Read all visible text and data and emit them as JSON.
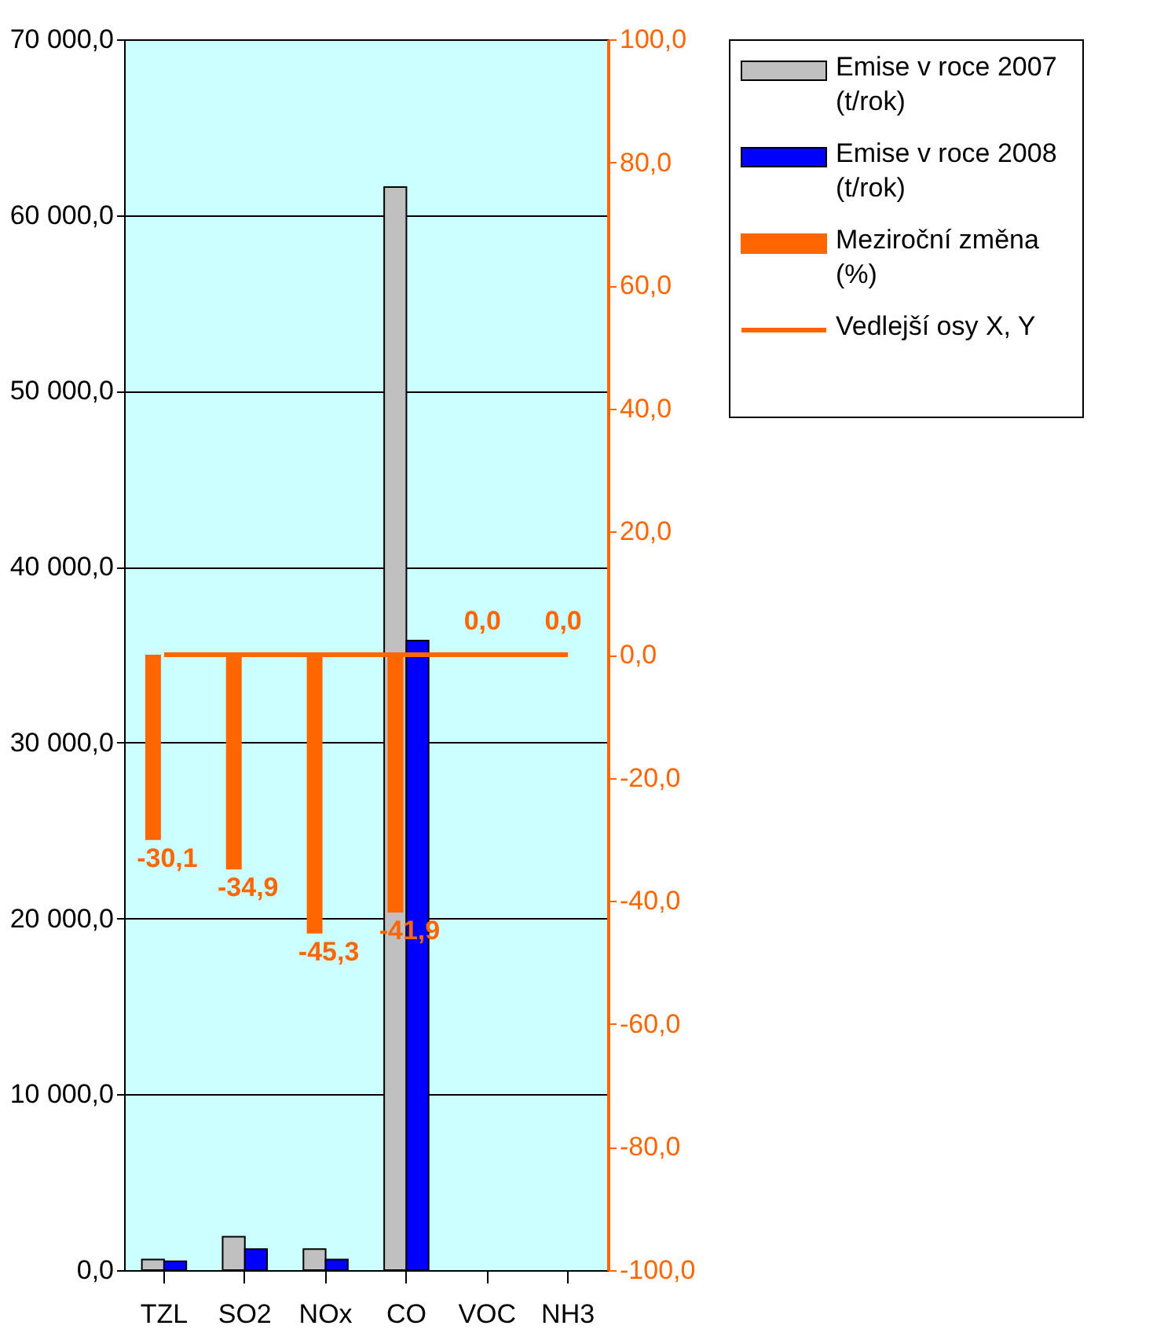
{
  "chart_data": {
    "type": "bar",
    "categories": [
      "TZL",
      "SO2",
      "NOx",
      "CO",
      "VOC",
      "NH3"
    ],
    "series": [
      {
        "name": "Emise v roce 2007\n(t/rok)",
        "color": "#c0c0c0",
        "values": [
          600,
          1900,
          1200,
          61600,
          null,
          null
        ]
      },
      {
        "name": "Emise v roce 2008\n(t/rok)",
        "color": "#0000ff",
        "values": [
          500,
          1200,
          600,
          35800,
          null,
          null
        ]
      },
      {
        "name": "Meziroční změna\n(%)",
        "color": "#ff6600",
        "axis": "y2",
        "values": [
          -30.1,
          -34.9,
          -45.3,
          -41.9,
          0.0,
          0.0
        ],
        "value_labels": [
          "-30,1",
          "-34,9",
          "-45,3",
          "-41,9",
          "0,0",
          "0,0"
        ]
      },
      {
        "name": "Vedlejší osy X, Y",
        "type": "line",
        "color": "#ff6600",
        "axis": "y2",
        "values": [
          0,
          0,
          0,
          0,
          0,
          0
        ]
      }
    ],
    "ylim": [
      0,
      70000
    ],
    "yticks": [
      {
        "value": 0,
        "label": "0,0"
      },
      {
        "value": 10000,
        "label": "10 000,0"
      },
      {
        "value": 20000,
        "label": "20 000,0"
      },
      {
        "value": 30000,
        "label": "30 000,0"
      },
      {
        "value": 40000,
        "label": "40 000,0"
      },
      {
        "value": 50000,
        "label": "50 000,0"
      },
      {
        "value": 60000,
        "label": "60 000,0"
      },
      {
        "value": 70000,
        "label": "70 000,0"
      }
    ],
    "y2lim": [
      -100,
      100
    ],
    "y2ticks": [
      {
        "value": -100,
        "label": "-100,0"
      },
      {
        "value": -80,
        "label": "-80,0"
      },
      {
        "value": -60,
        "label": "-60,0"
      },
      {
        "value": -40,
        "label": "-40,0"
      },
      {
        "value": -20,
        "label": "-20,0"
      },
      {
        "value": 0,
        "label": "0,0"
      },
      {
        "value": 20,
        "label": "20,0"
      },
      {
        "value": 40,
        "label": "40,0"
      },
      {
        "value": 60,
        "label": "60,0"
      },
      {
        "value": 80,
        "label": "80,0"
      },
      {
        "value": 100,
        "label": "100,0"
      }
    ],
    "grid": "y",
    "legend": "right",
    "marker": "none"
  }
}
